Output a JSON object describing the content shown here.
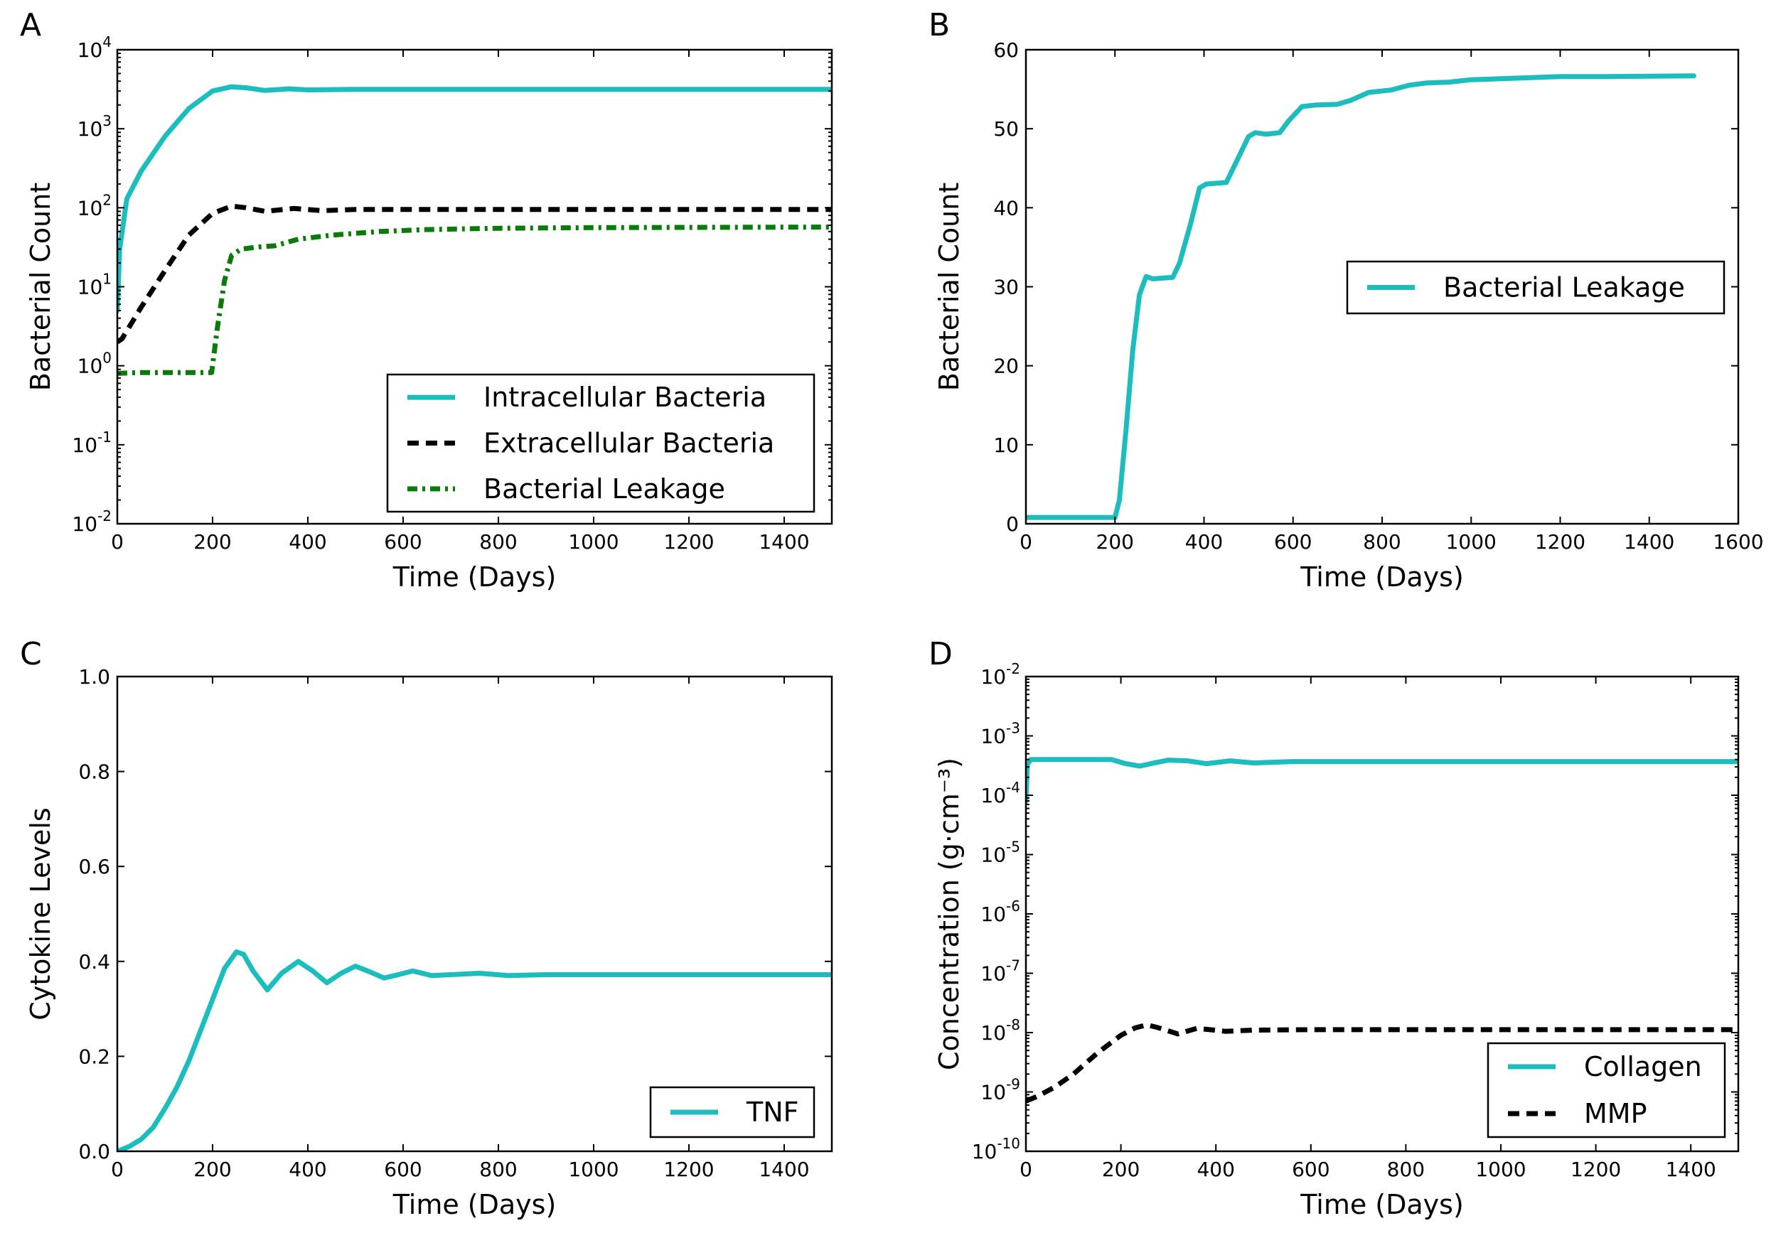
{
  "chart_data": [
    {
      "panel": "A",
      "type": "line",
      "xlabel": "Time (Days)",
      "ylabel": "Bacterial Count",
      "xlim": [
        0,
        1500
      ],
      "ylim": [
        0.01,
        10000
      ],
      "yscale": "log",
      "xticks": [
        0,
        200,
        400,
        600,
        800,
        1000,
        1200,
        1400
      ],
      "yticks": [
        {
          "base": "10",
          "exp": "-2"
        },
        {
          "base": "10",
          "exp": "-1"
        },
        {
          "base": "10",
          "exp": "0"
        },
        {
          "base": "10",
          "exp": "1"
        },
        {
          "base": "10",
          "exp": "2"
        },
        {
          "base": "10",
          "exp": "3"
        },
        {
          "base": "10",
          "exp": "4"
        }
      ],
      "legend_position": "lower-right",
      "series": [
        {
          "name": "Intracellular Bacteria",
          "color": "#1dbdbd",
          "style": "solid",
          "points": [
            [
              0,
              5
            ],
            [
              5,
              30
            ],
            [
              20,
              130
            ],
            [
              50,
              290
            ],
            [
              100,
              800
            ],
            [
              150,
              1800
            ],
            [
              200,
              3000
            ],
            [
              240,
              3400
            ],
            [
              270,
              3300
            ],
            [
              310,
              3050
            ],
            [
              360,
              3200
            ],
            [
              400,
              3100
            ],
            [
              500,
              3150
            ],
            [
              700,
              3150
            ],
            [
              1000,
              3150
            ],
            [
              1500,
              3150
            ]
          ]
        },
        {
          "name": "Extracellular Bacteria",
          "color": "#000000",
          "style": "dashed",
          "points": [
            [
              0,
              2
            ],
            [
              10,
              2.2
            ],
            [
              50,
              5.5
            ],
            [
              100,
              16
            ],
            [
              150,
              45
            ],
            [
              200,
              85
            ],
            [
              240,
              105
            ],
            [
              270,
              100
            ],
            [
              310,
              90
            ],
            [
              370,
              98
            ],
            [
              430,
              92
            ],
            [
              500,
              95
            ],
            [
              700,
              95
            ],
            [
              1000,
              95
            ],
            [
              1500,
              95
            ]
          ]
        },
        {
          "name": "Bacterial Leakage",
          "color": "#0a7a0a",
          "style": "dashdot",
          "points": [
            [
              0,
              0.8
            ],
            [
              50,
              0.82
            ],
            [
              100,
              0.82
            ],
            [
              150,
              0.82
            ],
            [
              198,
              0.82
            ],
            [
              210,
              3
            ],
            [
              225,
              12
            ],
            [
              240,
              25
            ],
            [
              260,
              30
            ],
            [
              300,
              32
            ],
            [
              330,
              33
            ],
            [
              380,
              40
            ],
            [
              450,
              45
            ],
            [
              550,
              50
            ],
            [
              650,
              53
            ],
            [
              800,
              55
            ],
            [
              1000,
              56
            ],
            [
              1500,
              57
            ]
          ]
        }
      ]
    },
    {
      "panel": "B",
      "type": "line",
      "xlabel": "Time (Days)",
      "ylabel": "Bacterial Count",
      "xlim": [
        0,
        1600
      ],
      "ylim": [
        0,
        60
      ],
      "yscale": "linear",
      "xticks": [
        0,
        200,
        400,
        600,
        800,
        1000,
        1200,
        1400,
        1600
      ],
      "yticks": [
        0,
        10,
        20,
        30,
        40,
        50,
        60
      ],
      "legend_position": "center-right",
      "series": [
        {
          "name": "Bacterial Leakage",
          "color": "#1dbdbd",
          "style": "solid",
          "points": [
            [
              0,
              0.8
            ],
            [
              200,
              0.8
            ],
            [
              210,
              3
            ],
            [
              225,
              12
            ],
            [
              240,
              22
            ],
            [
              255,
              29
            ],
            [
              270,
              31.3
            ],
            [
              285,
              31
            ],
            [
              330,
              31.2
            ],
            [
              345,
              33
            ],
            [
              370,
              38
            ],
            [
              390,
              42.5
            ],
            [
              405,
              43
            ],
            [
              450,
              43.2
            ],
            [
              470,
              45.5
            ],
            [
              500,
              49
            ],
            [
              515,
              49.5
            ],
            [
              540,
              49.3
            ],
            [
              570,
              49.5
            ],
            [
              590,
              51
            ],
            [
              620,
              52.8
            ],
            [
              650,
              53
            ],
            [
              700,
              53.1
            ],
            [
              730,
              53.6
            ],
            [
              770,
              54.6
            ],
            [
              820,
              54.9
            ],
            [
              860,
              55.5
            ],
            [
              900,
              55.8
            ],
            [
              950,
              55.9
            ],
            [
              1000,
              56.2
            ],
            [
              1100,
              56.4
            ],
            [
              1200,
              56.6
            ],
            [
              1300,
              56.6
            ],
            [
              1500,
              56.7
            ]
          ]
        }
      ]
    },
    {
      "panel": "C",
      "type": "line",
      "xlabel": "Time (Days)",
      "ylabel": "Cytokine Levels",
      "xlim": [
        0,
        1500
      ],
      "ylim": [
        0,
        1.0
      ],
      "yscale": "linear",
      "xticks": [
        0,
        200,
        400,
        600,
        800,
        1000,
        1200,
        1400
      ],
      "yticks": [
        "0.0",
        "0.2",
        "0.4",
        "0.6",
        "0.8",
        "1.0"
      ],
      "legend_position": "lower-right",
      "series": [
        {
          "name": "TNF",
          "color": "#1dbdbd",
          "style": "solid",
          "points": [
            [
              0,
              0
            ],
            [
              25,
              0.01
            ],
            [
              50,
              0.025
            ],
            [
              75,
              0.05
            ],
            [
              100,
              0.09
            ],
            [
              125,
              0.135
            ],
            [
              150,
              0.19
            ],
            [
              175,
              0.255
            ],
            [
              200,
              0.32
            ],
            [
              225,
              0.385
            ],
            [
              250,
              0.42
            ],
            [
              265,
              0.415
            ],
            [
              285,
              0.38
            ],
            [
              315,
              0.34
            ],
            [
              345,
              0.375
            ],
            [
              380,
              0.4
            ],
            [
              410,
              0.38
            ],
            [
              440,
              0.355
            ],
            [
              470,
              0.375
            ],
            [
              500,
              0.39
            ],
            [
              530,
              0.378
            ],
            [
              560,
              0.365
            ],
            [
              590,
              0.372
            ],
            [
              620,
              0.38
            ],
            [
              660,
              0.37
            ],
            [
              700,
              0.372
            ],
            [
              760,
              0.375
            ],
            [
              820,
              0.37
            ],
            [
              900,
              0.372
            ],
            [
              1000,
              0.372
            ],
            [
              1200,
              0.372
            ],
            [
              1500,
              0.372
            ]
          ]
        }
      ]
    },
    {
      "panel": "D",
      "type": "line",
      "xlabel": "Time (Days)",
      "ylabel": "Concentration (g·cm⁻³)",
      "xlim": [
        0,
        1500
      ],
      "ylim": [
        1e-10,
        0.01
      ],
      "yscale": "log",
      "xticks": [
        0,
        200,
        400,
        600,
        800,
        1000,
        1200,
        1400
      ],
      "yticks": [
        {
          "base": "10",
          "exp": "-10"
        },
        {
          "base": "10",
          "exp": "-9"
        },
        {
          "base": "10",
          "exp": "-8"
        },
        {
          "base": "10",
          "exp": "-7"
        },
        {
          "base": "10",
          "exp": "-6"
        },
        {
          "base": "10",
          "exp": "-5"
        },
        {
          "base": "10",
          "exp": "-4"
        },
        {
          "base": "10",
          "exp": "-3"
        },
        {
          "base": "10",
          "exp": "-2"
        }
      ],
      "legend_position": "lower-right",
      "series": [
        {
          "name": "Collagen",
          "color": "#1dbdbd",
          "style": "solid",
          "points": [
            [
              0,
              8e-05
            ],
            [
              3,
              0.00033
            ],
            [
              10,
              0.0004
            ],
            [
              100,
              0.0004
            ],
            [
              180,
              0.0004
            ],
            [
              210,
              0.00034
            ],
            [
              240,
              0.00031
            ],
            [
              270,
              0.00035
            ],
            [
              300,
              0.00039
            ],
            [
              340,
              0.00038
            ],
            [
              380,
              0.00034
            ],
            [
              430,
              0.00038
            ],
            [
              480,
              0.00035
            ],
            [
              560,
              0.00037
            ],
            [
              700,
              0.00037
            ],
            [
              1000,
              0.00037
            ],
            [
              1500,
              0.00037
            ]
          ]
        },
        {
          "name": "MMP",
          "color": "#000000",
          "style": "dashed",
          "points": [
            [
              0,
              7e-10
            ],
            [
              25,
              8.5e-10
            ],
            [
              60,
              1.2e-09
            ],
            [
              100,
              2e-09
            ],
            [
              150,
              4.5e-09
            ],
            [
              200,
              9e-09
            ],
            [
              230,
              1.2e-08
            ],
            [
              255,
              1.35e-08
            ],
            [
              280,
              1.2e-08
            ],
            [
              320,
              9.5e-09
            ],
            [
              360,
              1.18e-08
            ],
            [
              420,
              1.05e-08
            ],
            [
              480,
              1.1e-08
            ],
            [
              600,
              1.12e-08
            ],
            [
              800,
              1.12e-08
            ],
            [
              1000,
              1.12e-08
            ],
            [
              1500,
              1.12e-08
            ]
          ]
        }
      ]
    }
  ]
}
